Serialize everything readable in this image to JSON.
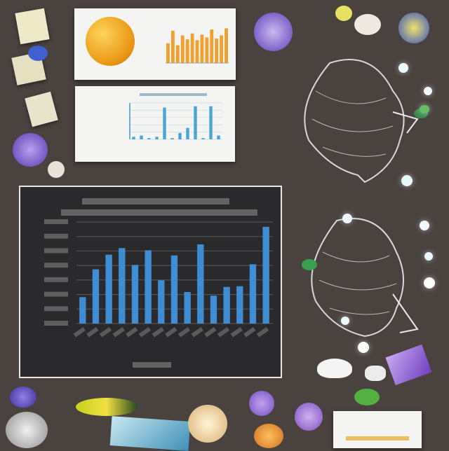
{
  "scene": {
    "background": "#4a423f",
    "accent_colors": {
      "bar_blue": "#3f8ed3",
      "small_bar_blue": "#4aa4d6",
      "orange_bar": "#f0a030",
      "purple_flower": "#7a5ac8",
      "green_leaf": "#3a8a4a",
      "yellow_fruit": "#e6d430"
    },
    "icons": [
      "orange-sphere-icon",
      "purple-flower-icon",
      "wireframe-bird-icon",
      "leaf-icon",
      "crystal-icon",
      "document-icon"
    ]
  },
  "chart_data": [
    {
      "type": "bar",
      "values": [
        36,
        74,
        94,
        103,
        80,
        100,
        59,
        93,
        43,
        108,
        38,
        50,
        51,
        81,
        132
      ]
    },
    {
      "type": "bar",
      "values": [
        2,
        3,
        1,
        2,
        25,
        1,
        5,
        9,
        26,
        1,
        26,
        3
      ]
    },
    {
      "type": "bar",
      "values": [
        50,
        82,
        45,
        70,
        60,
        75,
        58,
        72,
        65,
        85,
        62,
        70,
        88
      ]
    }
  ]
}
